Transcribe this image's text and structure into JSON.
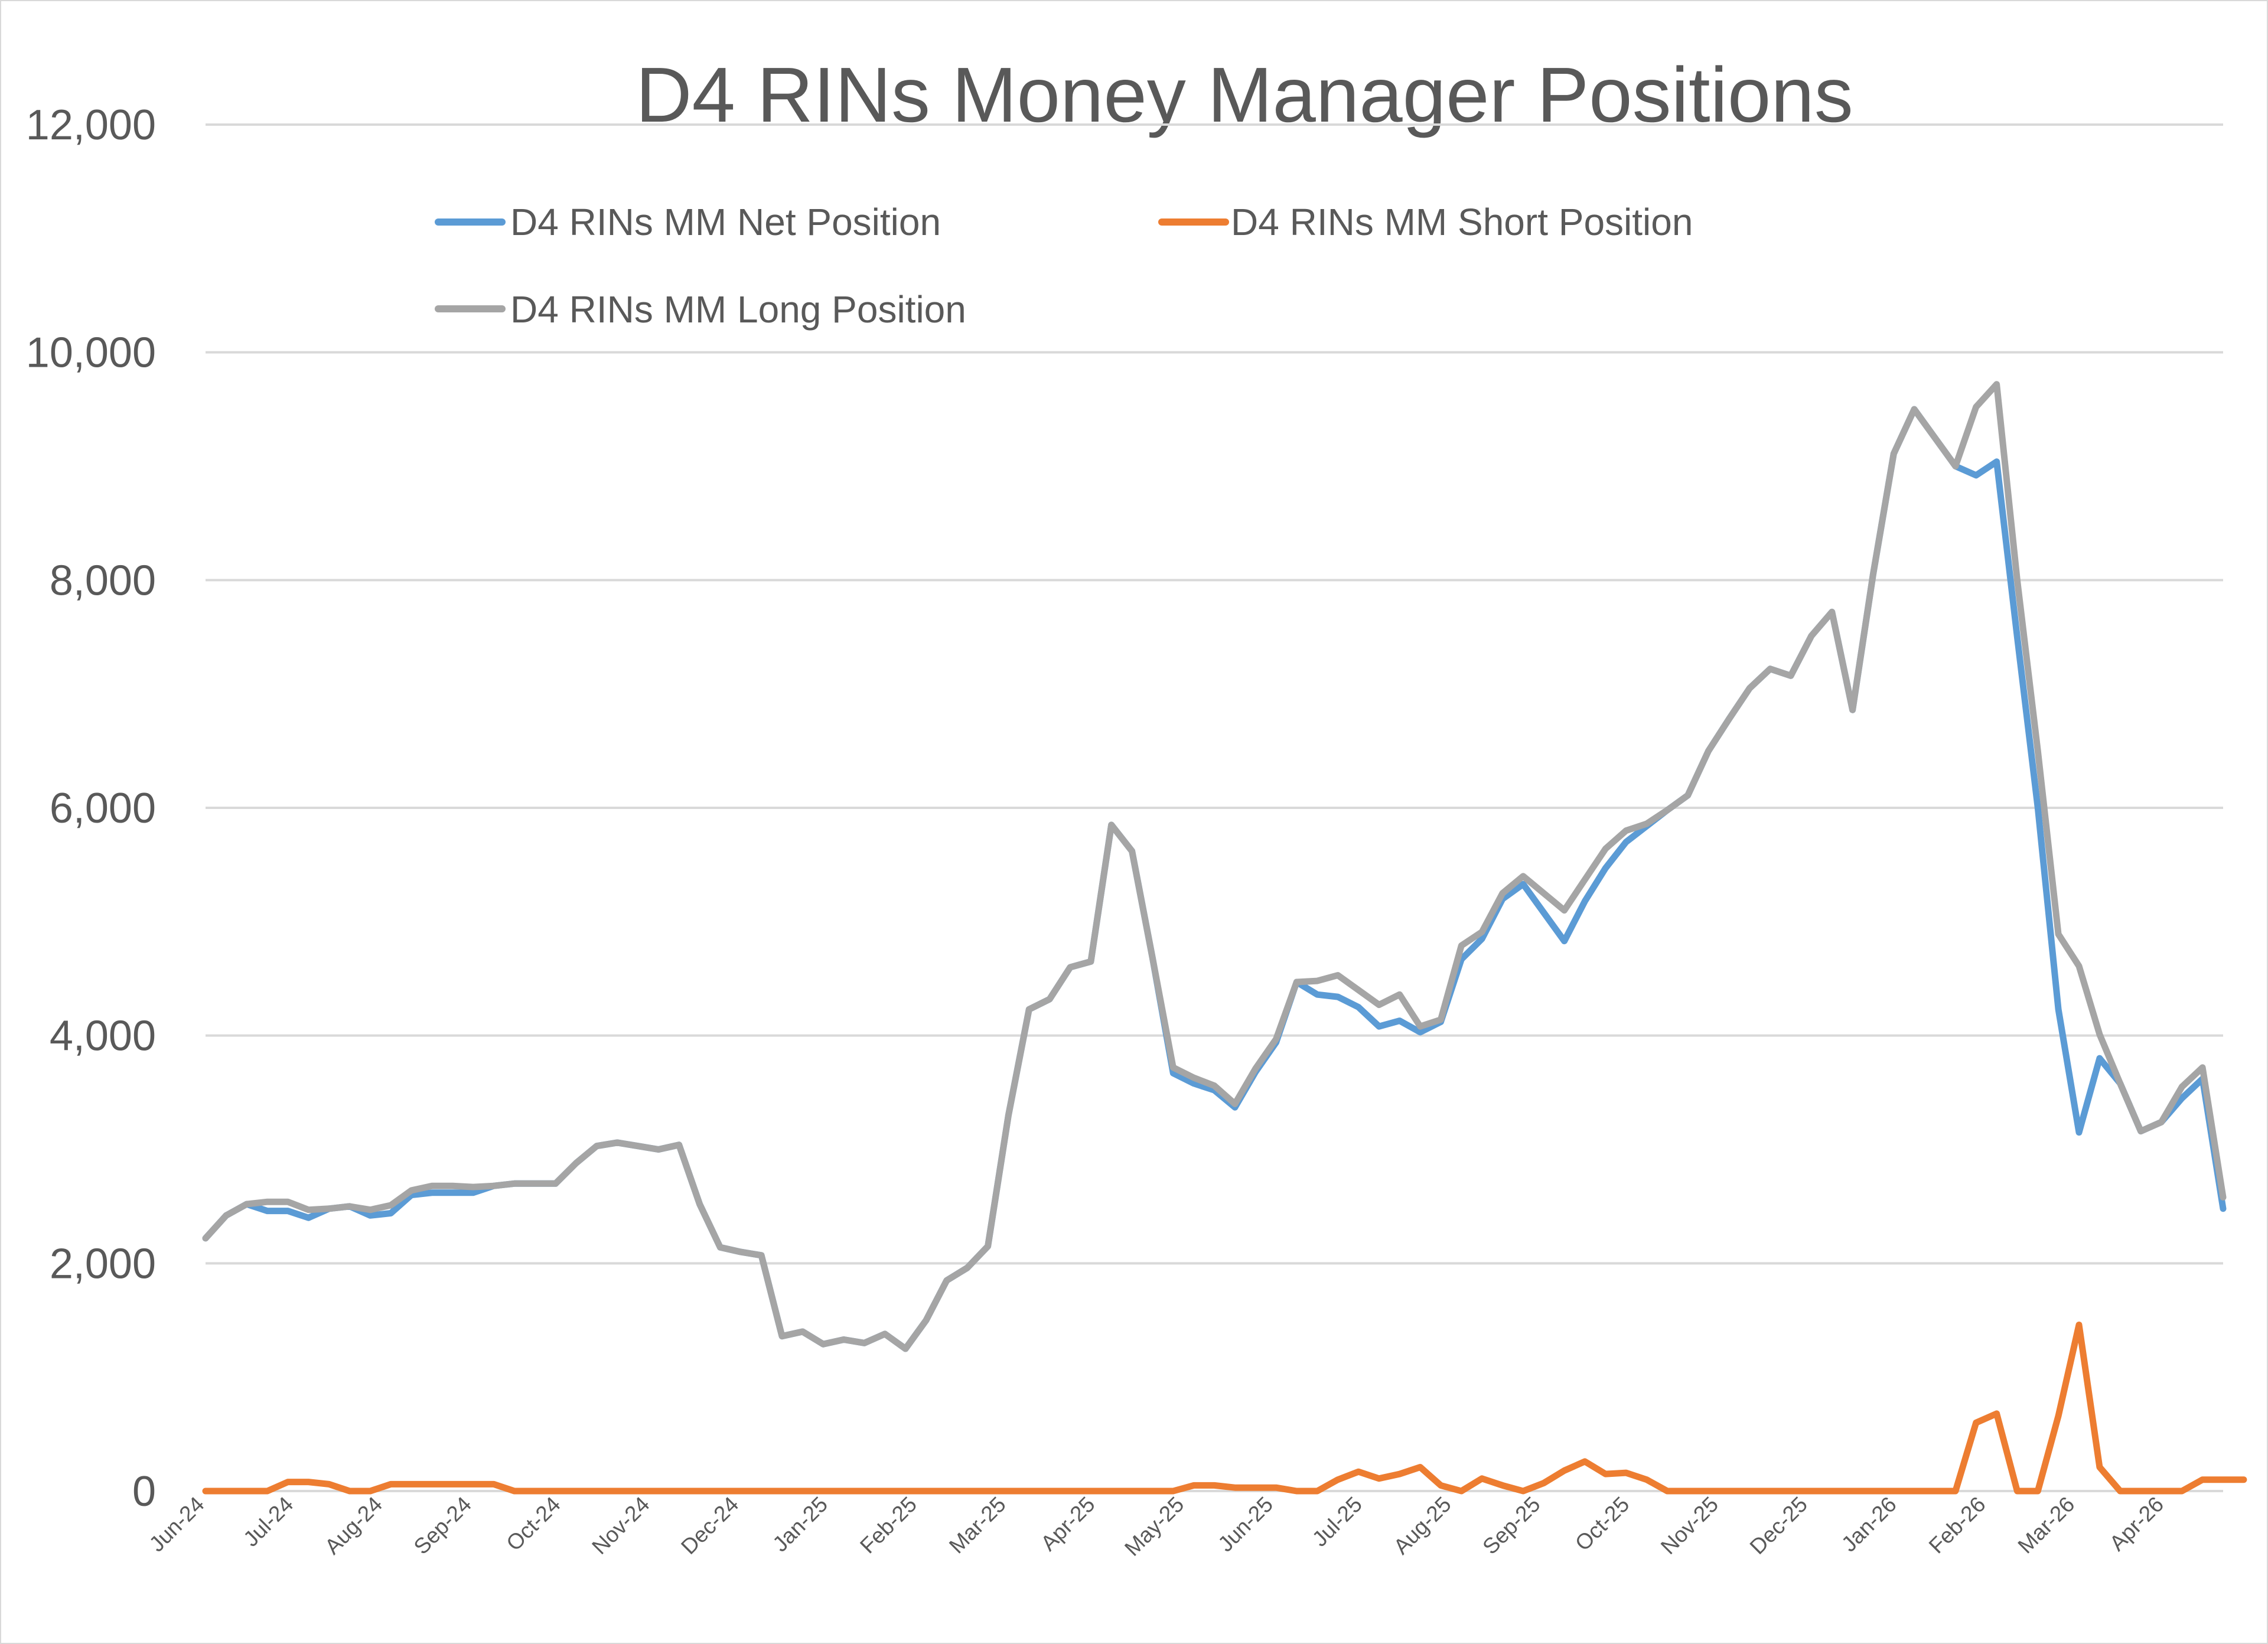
{
  "chart_data": {
    "type": "line",
    "title": "D4 RINs Money Manager Positions",
    "xlabel": "",
    "ylabel": "",
    "ylim": [
      0,
      12000
    ],
    "yticks": [
      "0",
      "2,000",
      "4,000",
      "6,000",
      "8,000",
      "10,000",
      "12,000"
    ],
    "ytick_values": [
      0,
      2000,
      4000,
      6000,
      8000,
      10000,
      12000
    ],
    "x_tick_labels": [
      "Jun-24",
      "Jul-24",
      "Aug-24",
      "Sep-24",
      "Oct-24",
      "Nov-24",
      "Dec-24",
      "Jan-25",
      "Feb-25",
      "Mar-25",
      "Apr-25",
      "May-25",
      "Jun-25",
      "Jul-25",
      "Aug-25",
      "Sep-25",
      "Oct-25",
      "Nov-25",
      "Dec-25",
      "Jan-26",
      "Feb-26",
      "Mar-26",
      "Apr-26"
    ],
    "grid": true,
    "legend_position": "top",
    "series": [
      {
        "name": "D4 RINs MM Net Position",
        "color": "#5b9bd5",
        "values": [
          2220,
          2420,
          2520,
          2460,
          2460,
          2400,
          2480,
          2500,
          2420,
          2440,
          2600,
          2620,
          2620,
          2620,
          2680,
          2700,
          2700,
          2700,
          2880,
          3030,
          3060,
          3030,
          3000,
          3040,
          2520,
          2140,
          2100,
          2070,
          1360,
          1400,
          1290,
          1330,
          1300,
          1380,
          1250,
          1500,
          1850,
          1960,
          2150,
          3300,
          4230,
          4320,
          4600,
          4650,
          5850,
          5620,
          4680,
          3670,
          3580,
          3520,
          3370,
          3680,
          3940,
          4470,
          4360,
          4340,
          4250,
          4080,
          4130,
          4030,
          4120,
          4670,
          4850,
          5200,
          5330,
          5080,
          4830,
          5180,
          5470,
          5700,
          5840,
          5980,
          6110,
          6500,
          6780,
          7050,
          7220,
          7160,
          7510,
          7720,
          6860,
          8050,
          9110,
          9500,
          9250,
          9000,
          8920,
          9040,
          7500,
          6000,
          4230,
          3150,
          3800,
          3580,
          3160,
          3240,
          3450,
          3620,
          2480
        ]
      },
      {
        "name": "D4 RINs MM Short Position",
        "color": "#ed7d31",
        "values": [
          0,
          0,
          0,
          0,
          80,
          80,
          60,
          0,
          0,
          60,
          60,
          60,
          60,
          60,
          60,
          0,
          0,
          0,
          0,
          0,
          0,
          0,
          0,
          0,
          0,
          0,
          0,
          0,
          0,
          0,
          0,
          0,
          0,
          0,
          0,
          0,
          0,
          0,
          0,
          0,
          0,
          0,
          0,
          0,
          0,
          0,
          0,
          0,
          50,
          50,
          30,
          30,
          30,
          0,
          0,
          100,
          170,
          110,
          150,
          210,
          50,
          0,
          110,
          50,
          0,
          70,
          180,
          260,
          150,
          160,
          100,
          0,
          0,
          0,
          0,
          0,
          0,
          0,
          0,
          0,
          0,
          0,
          0,
          0,
          0,
          0,
          600,
          680,
          0,
          0,
          660,
          1460,
          210,
          0,
          0,
          0,
          0,
          100,
          100,
          100
        ]
      },
      {
        "name": "D4 RINs MM Long Position",
        "color": "#a5a5a5",
        "values": [
          2220,
          2420,
          2520,
          2540,
          2540,
          2470,
          2480,
          2500,
          2470,
          2510,
          2640,
          2680,
          2680,
          2670,
          2680,
          2700,
          2700,
          2700,
          2880,
          3030,
          3060,
          3030,
          3000,
          3040,
          2520,
          2140,
          2100,
          2070,
          1360,
          1400,
          1290,
          1330,
          1300,
          1380,
          1250,
          1500,
          1850,
          1960,
          2150,
          3300,
          4230,
          4320,
          4600,
          4650,
          5850,
          5620,
          4680,
          3720,
          3630,
          3560,
          3400,
          3710,
          3970,
          4470,
          4480,
          4530,
          4400,
          4270,
          4360,
          4080,
          4140,
          4790,
          4910,
          5250,
          5400,
          5250,
          5100,
          5370,
          5640,
          5800,
          5860,
          5980,
          6110,
          6500,
          6780,
          7050,
          7220,
          7160,
          7510,
          7720,
          6860,
          8050,
          9110,
          9500,
          9250,
          9000,
          9520,
          9720,
          8000,
          6500,
          4890,
          4610,
          4010,
          3580,
          3160,
          3240,
          3550,
          3720,
          2580
        ]
      }
    ]
  }
}
